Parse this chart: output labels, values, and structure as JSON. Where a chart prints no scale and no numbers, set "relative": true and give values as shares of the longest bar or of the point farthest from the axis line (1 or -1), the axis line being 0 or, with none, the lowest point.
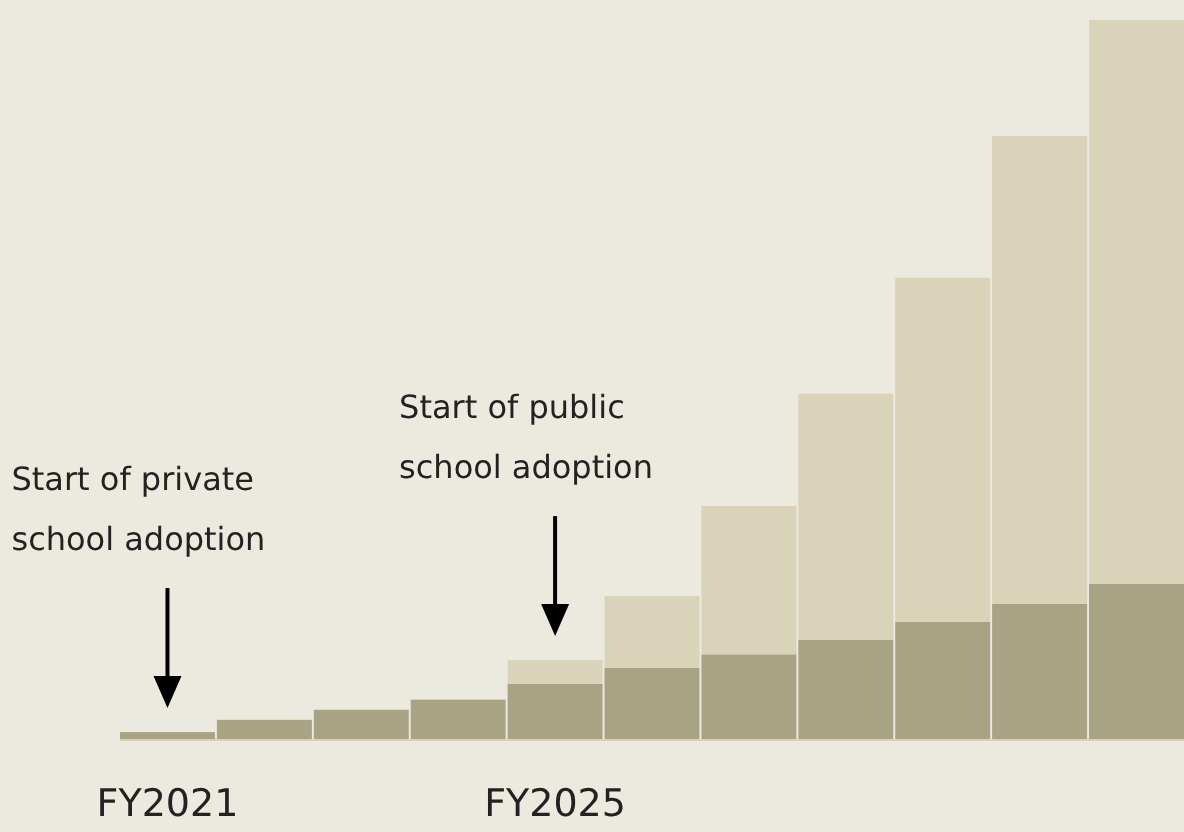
{
  "chart_data": {
    "type": "bar",
    "stacked": true,
    "relative": true,
    "categories": [
      "FY2021",
      null,
      null,
      null,
      "FY2025",
      null,
      null,
      null,
      null,
      null,
      null
    ],
    "series": [
      {
        "color": "#a9a386",
        "values": [
          0.011,
          0.028,
          0.042,
          0.056,
          0.078,
          0.1,
          0.119,
          0.139,
          0.164,
          0.189,
          0.217
        ]
      },
      {
        "color": "#d9d3ba",
        "values": [
          null,
          null,
          null,
          null,
          0.033,
          0.1,
          0.206,
          0.342,
          0.478,
          0.65,
          0.783
        ]
      }
    ],
    "annotations": [
      "Start of private\nschool adoption",
      "Start of public\nschool adoption"
    ]
  }
}
